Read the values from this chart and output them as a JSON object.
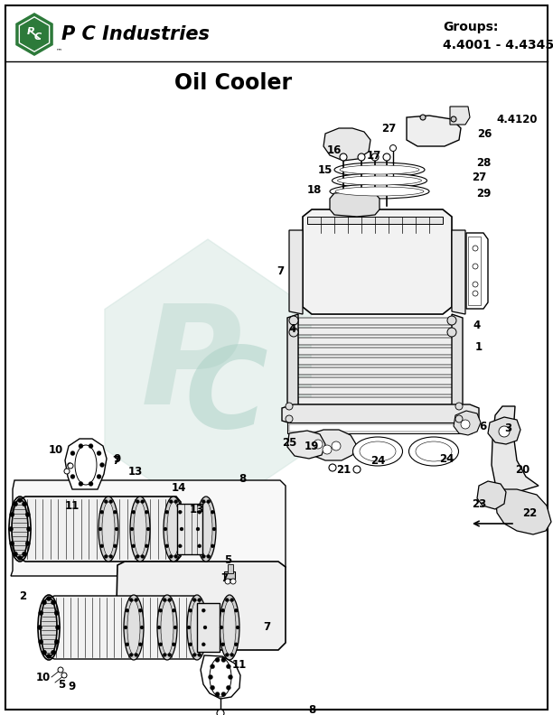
{
  "title": "Oil Cooler",
  "company_name": "P C Industries",
  "groups_label": "Groups:",
  "groups_value": "4.4001 - 4.4345",
  "background_color": "#ffffff",
  "border_color": "#000000",
  "logo_hex_color": "#2d7a3a",
  "watermark_color": "#c8dfd8",
  "title_fontsize": 17,
  "label_fontsize": 8.5,
  "figsize": [
    6.12,
    7.92
  ],
  "dpi": 100
}
